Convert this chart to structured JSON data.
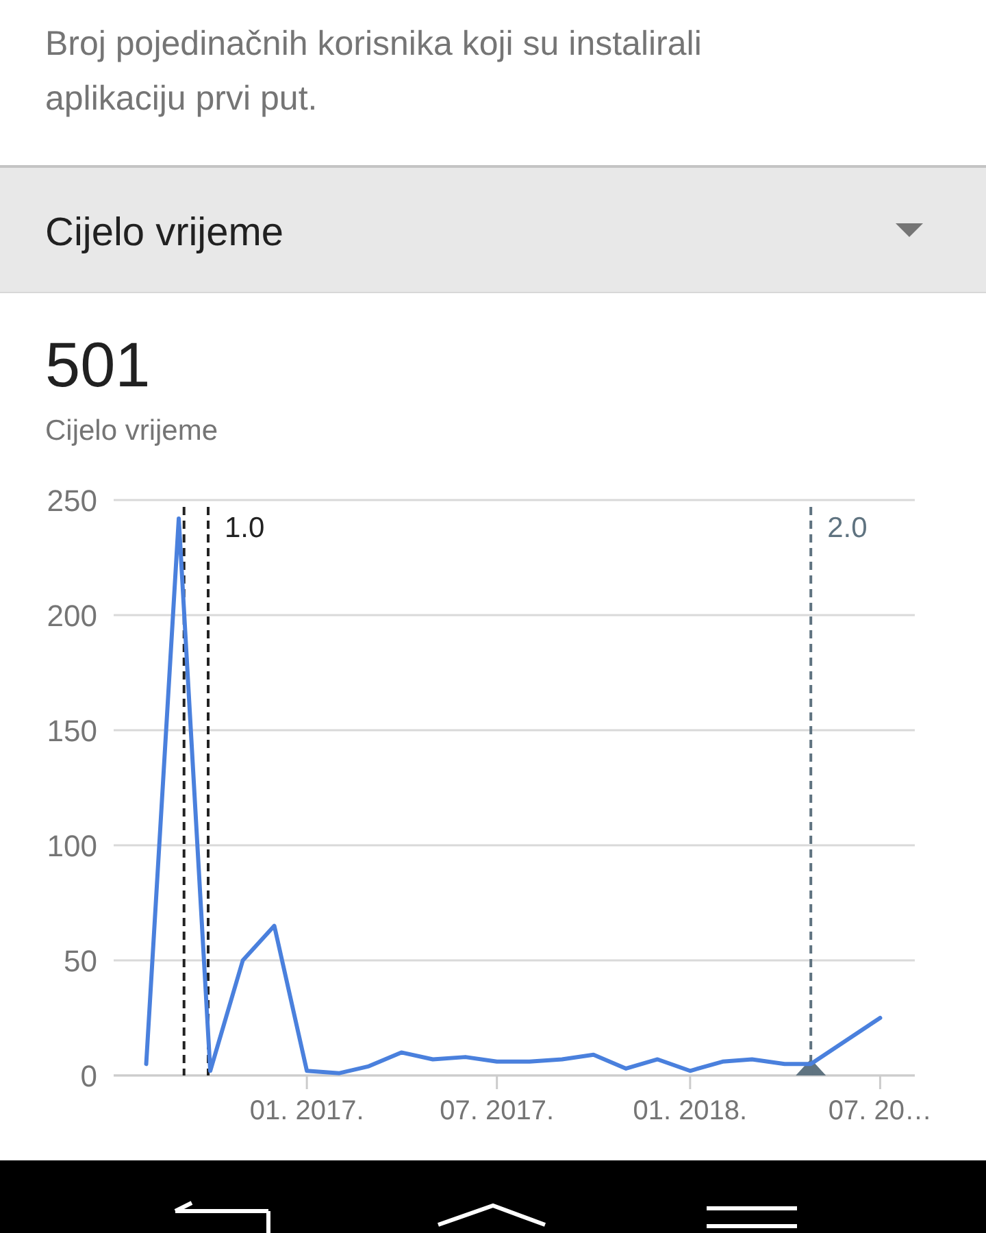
{
  "chart_data": {
    "type": "line",
    "title": "Broj pojedinačnih korisnika koji su instalirali aplikaciju prvi put.",
    "annotations": [
      "Cijelo vrijeme",
      "501",
      "Cijelo vrijeme"
    ],
    "x": [
      "2016-08-01",
      "2016-09-01",
      "2016-10-01",
      "2016-11-01",
      "2016-12-01",
      "2017-01-01",
      "2017-02-01",
      "2017-03-01",
      "2017-04-01",
      "2017-05-01",
      "2017-06-01",
      "2017-07-01",
      "2017-08-01",
      "2017-09-01",
      "2017-10-01",
      "2017-11-01",
      "2017-12-01",
      "2018-01-01",
      "2018-02-01",
      "2018-03-01",
      "2018-04-01",
      "2018-04-26",
      "2018-07-01"
    ],
    "series": [
      {
        "color": "#4a80dd",
        "values": [
          5,
          242,
          2,
          50,
          65,
          2,
          1,
          4,
          10,
          7,
          8,
          6,
          6,
          7,
          9,
          3,
          7,
          2,
          6,
          7,
          5,
          5,
          25
        ]
      }
    ],
    "xlim": [
      "2016-07-01",
      "2018-08-03"
    ],
    "xticks": [
      {
        "value": "2017-01-01",
        "label": "01. 2017."
      },
      {
        "value": "2017-07-01",
        "label": "07. 2017."
      },
      {
        "value": "2018-01-01",
        "label": "01. 2018."
      },
      {
        "value": "2018-07-01",
        "label": "07. 20…"
      }
    ],
    "ylim": [
      0,
      250
    ],
    "yticks": [
      0,
      50,
      100,
      150,
      200,
      250
    ],
    "grid": "y",
    "marker": "none",
    "line_style": "solid",
    "ref_lines": [
      {
        "axis": "x",
        "value": "2016-09-06",
        "label": null,
        "color": "#222222",
        "line_style": "dashed"
      },
      {
        "axis": "x",
        "value": "2016-09-29",
        "label": "1.0",
        "color": "#222222",
        "line_style": "dashed"
      },
      {
        "axis": "x",
        "value": "2018-04-26",
        "label": "2.0",
        "color": "#5f7380",
        "line_style": "dashed"
      }
    ]
  }
}
